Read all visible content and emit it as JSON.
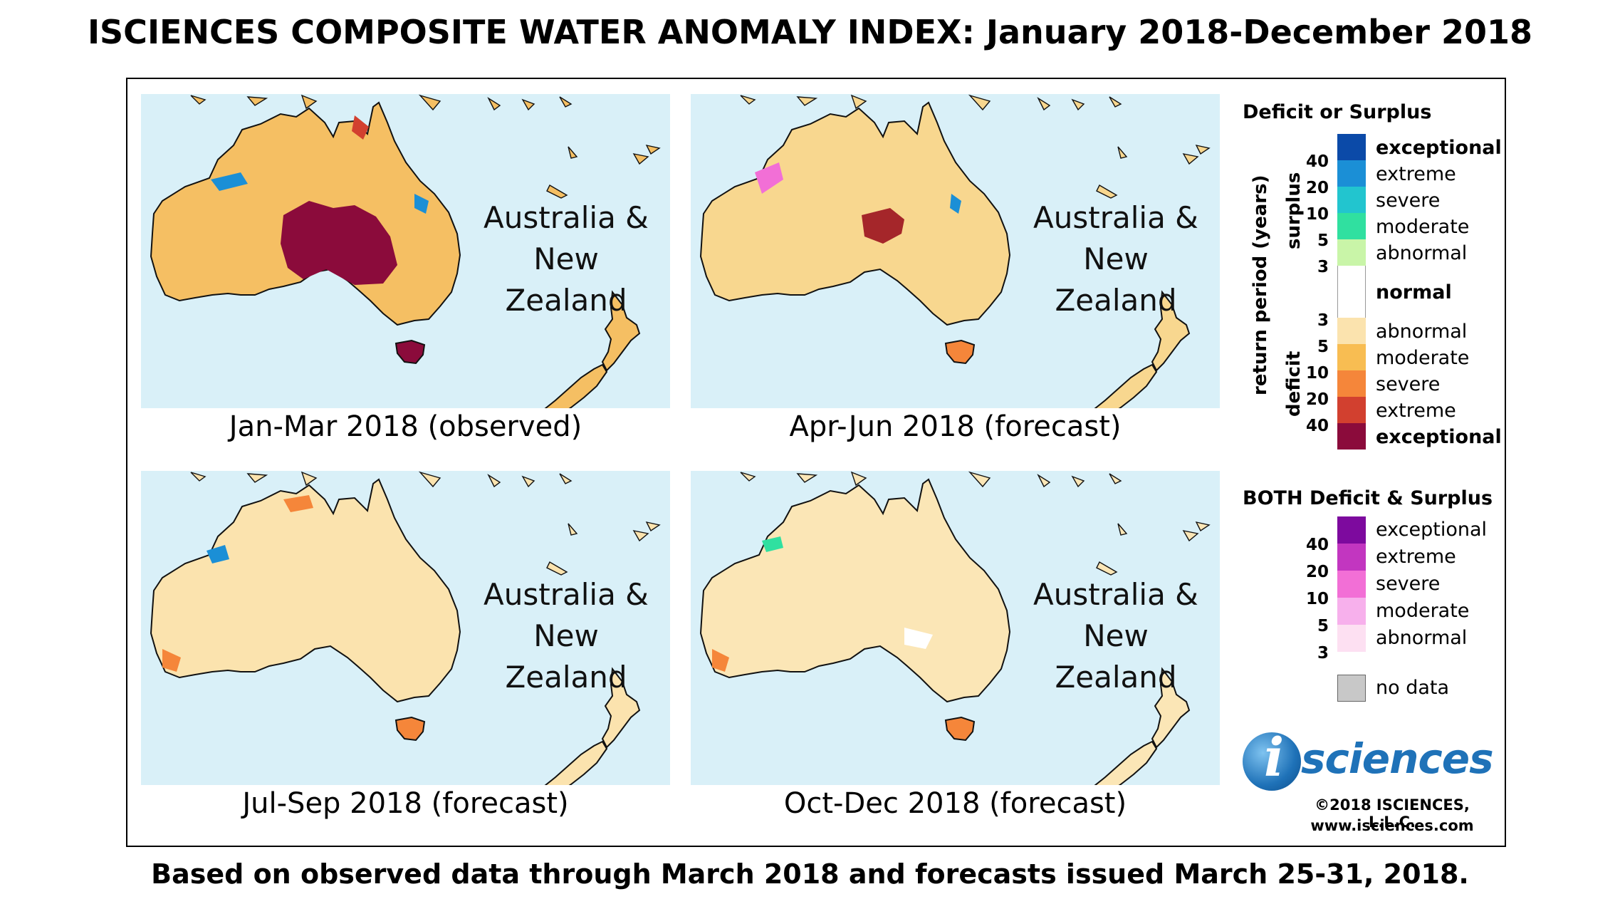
{
  "title": "ISCIENCES COMPOSITE WATER ANOMALY INDEX: January 2018-December 2018",
  "footer": "Based on observed data through March 2018 and forecasts issued March 25-31, 2018.",
  "region_label": [
    "Australia &",
    "New Zealand"
  ],
  "panels": [
    {
      "caption": "Jan-Mar 2018 (observed)",
      "base_color": "#f5bf63",
      "interior_color": "#8b0b3b",
      "interior_class": "exceptional deficit"
    },
    {
      "caption": "Apr-Jun 2018 (forecast)",
      "base_color": "#f8d78f",
      "interior_color": "#a5262a",
      "interior_class": "extreme deficit"
    },
    {
      "caption": "Jul-Sep 2018 (forecast)",
      "base_color": "#fbe3ae",
      "interior_color": "#fbe3ae",
      "interior_class": "abnormal deficit"
    },
    {
      "caption": "Oct-Dec 2018 (forecast)",
      "base_color": "#fbe6b6",
      "interior_color": "#fbe6b6",
      "interior_class": "abnormal deficit"
    }
  ],
  "legend": {
    "title": "Deficit or Surplus",
    "axis_label": "return period (years)",
    "surplus_label": "surplus",
    "deficit_label": "deficit",
    "surplus_ticks": [
      "40",
      "20",
      "10",
      "5",
      "3"
    ],
    "deficit_ticks": [
      "3",
      "5",
      "10",
      "20",
      "40"
    ],
    "classes": [
      {
        "label": "exceptional",
        "color": "#0b4aa8",
        "bold": true
      },
      {
        "label": "extreme",
        "color": "#1b8fd6",
        "bold": false
      },
      {
        "label": "severe",
        "color": "#22c5cf",
        "bold": false
      },
      {
        "label": "moderate",
        "color": "#30e0a0",
        "bold": false
      },
      {
        "label": "abnormal",
        "color": "#c9f5a8",
        "bold": false
      },
      {
        "label": "normal",
        "color": "#ffffff",
        "bold": true
      },
      {
        "label": "abnormal",
        "color": "#fbe3ae",
        "bold": false
      },
      {
        "label": "moderate",
        "color": "#f8bd52",
        "bold": false
      },
      {
        "label": "severe",
        "color": "#f5863a",
        "bold": false
      },
      {
        "label": "extreme",
        "color": "#d2402f",
        "bold": false
      },
      {
        "label": "exceptional",
        "color": "#8b0b3b",
        "bold": true
      }
    ],
    "both_title": "BOTH Deficit & Surplus",
    "both_ticks": [
      "40",
      "20",
      "10",
      "5",
      "3"
    ],
    "both_classes": [
      {
        "label": "exceptional",
        "color": "#7d0a9e"
      },
      {
        "label": "extreme",
        "color": "#c236c0"
      },
      {
        "label": "severe",
        "color": "#f26fd6"
      },
      {
        "label": "moderate",
        "color": "#f7b0ec"
      },
      {
        "label": "abnormal",
        "color": "#fde0f2"
      }
    ],
    "no_data": {
      "label": "no data",
      "color": "#c8c8c8"
    }
  },
  "logo": {
    "letter": "i",
    "text": "sciences"
  },
  "copyright": "©2018 ISCIENCES, L.L.C.",
  "website": "www.isciences.com"
}
